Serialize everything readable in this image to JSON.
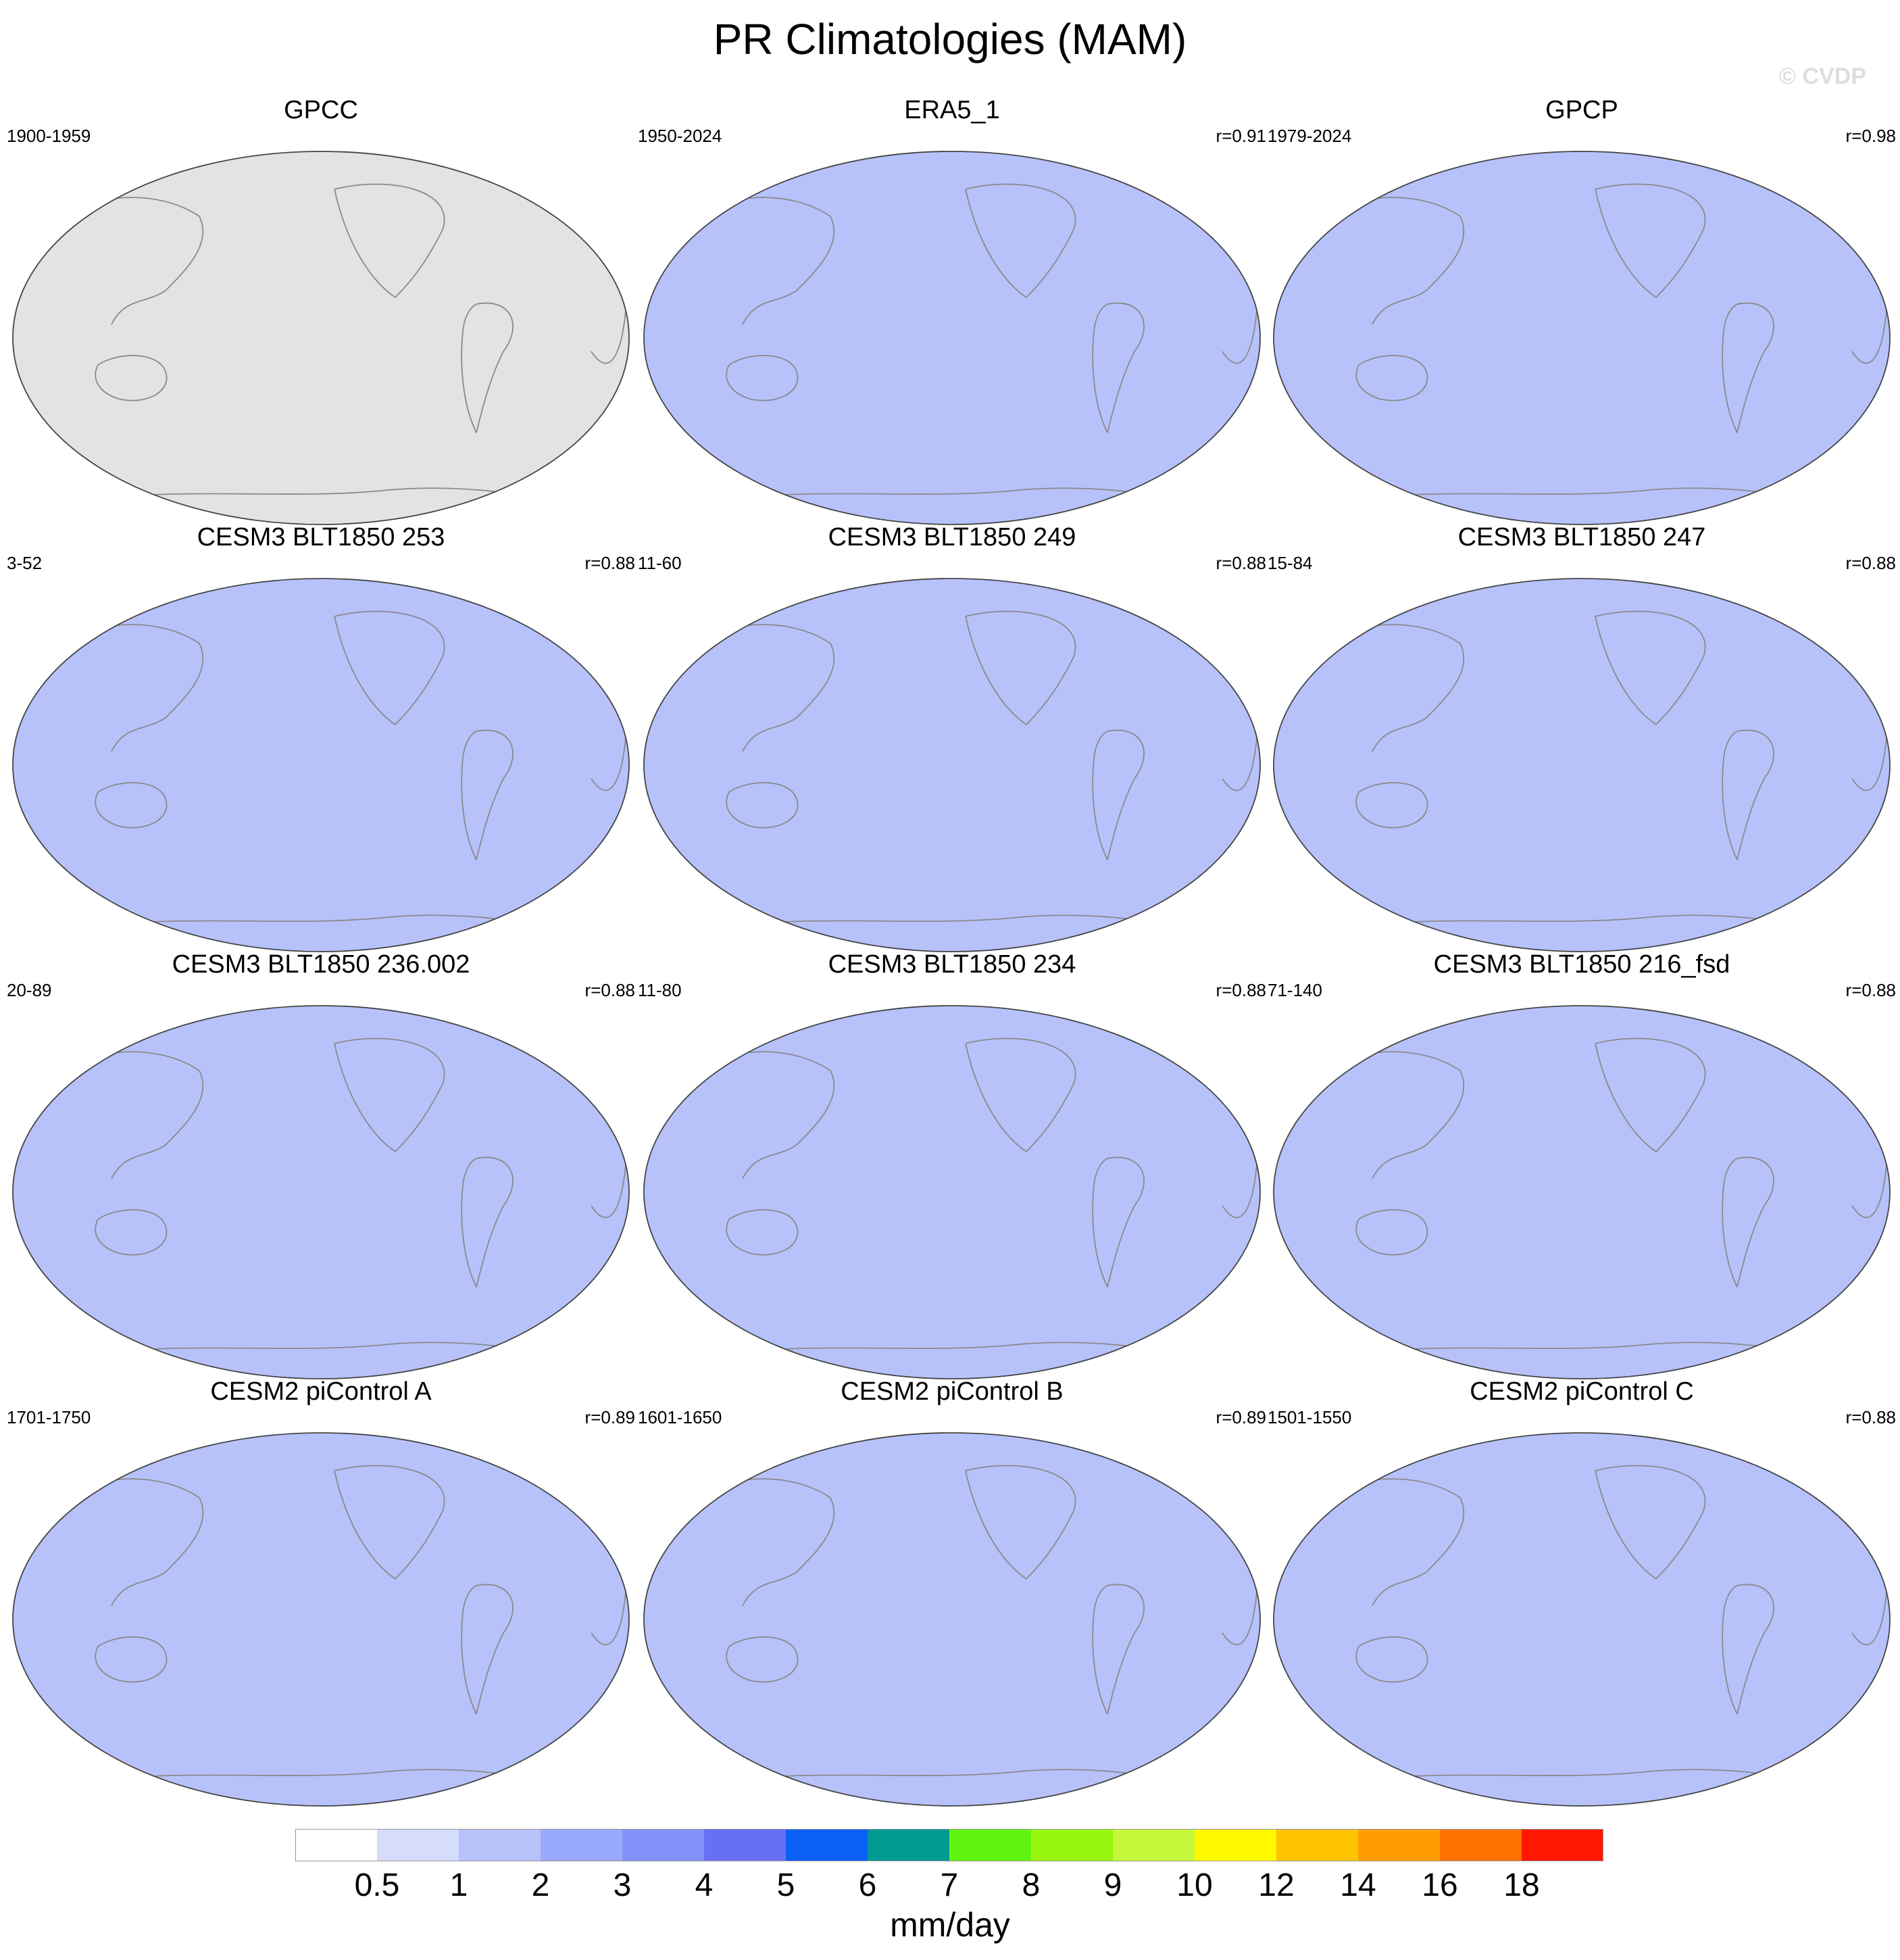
{
  "title": "PR Climatologies (MAM)",
  "watermark": "© CVDP",
  "panels": [
    {
      "title": "GPCC",
      "years": "1900-1959",
      "corr": "",
      "style": "gpcc"
    },
    {
      "title": "ERA5_1",
      "years": "1950-2024",
      "corr": "r=0.91",
      "style": "era5"
    },
    {
      "title": "GPCP",
      "years": "1979-2024",
      "corr": "r=0.98",
      "style": "gpcp"
    },
    {
      "title": "CESM3 BLT1850 253",
      "years": "3-52",
      "corr": "r=0.88",
      "style": "cesm3"
    },
    {
      "title": "CESM3 BLT1850 249",
      "years": "11-60",
      "corr": "r=0.88",
      "style": "cesm3"
    },
    {
      "title": "CESM3 BLT1850 247",
      "years": "15-84",
      "corr": "r=0.88",
      "style": "cesm3"
    },
    {
      "title": "CESM3 BLT1850 236.002",
      "years": "20-89",
      "corr": "r=0.88",
      "style": "cesm3"
    },
    {
      "title": "CESM3 BLT1850 234",
      "years": "11-80",
      "corr": "r=0.88",
      "style": "cesm3"
    },
    {
      "title": "CESM3 BLT1850 216_fsd",
      "years": "71-140",
      "corr": "r=0.88",
      "style": "cesm3"
    },
    {
      "title": "CESM2 piControl A",
      "years": "1701-1750",
      "corr": "r=0.89",
      "style": "cesm2"
    },
    {
      "title": "CESM2 piControl B",
      "years": "1601-1650",
      "corr": "r=0.89",
      "style": "cesm2"
    },
    {
      "title": "CESM2 piControl C",
      "years": "1501-1550",
      "corr": "r=0.88",
      "style": "cesm2"
    }
  ],
  "colorbar": {
    "colors": [
      "#ffffff",
      "#d6dcfb",
      "#b7c2fb",
      "#99a9fb",
      "#8391fb",
      "#6770f4",
      "#0a5ff6",
      "#009a92",
      "#5ff50f",
      "#98f60e",
      "#c4f83a",
      "#fff900",
      "#ffc300",
      "#ff9d00",
      "#ff7200",
      "#ff1800"
    ],
    "labels": [
      "0.5",
      "1",
      "2",
      "3",
      "4",
      "5",
      "6",
      "7",
      "8",
      "9",
      "10",
      "12",
      "14",
      "16",
      "18"
    ],
    "units": "mm/day"
  }
}
